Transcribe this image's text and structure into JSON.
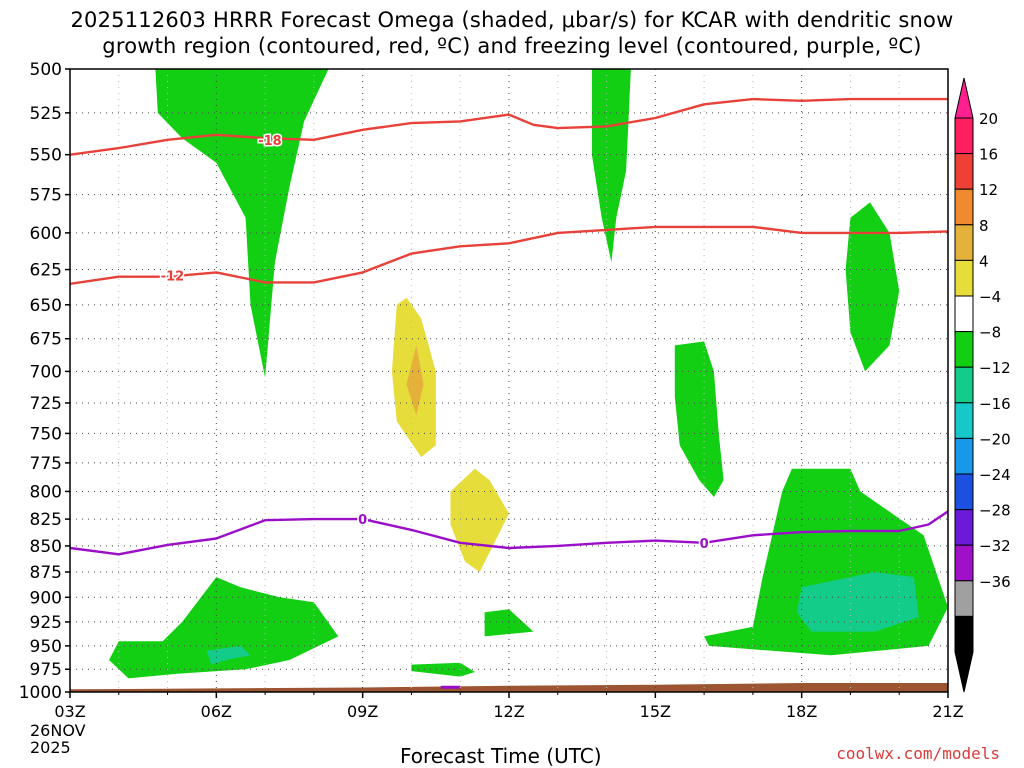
{
  "title_line1": "2025112603 HRRR Forecast Omega (shaded, μbar/s) for KCAR with dendritic snow",
  "title_line2": "growth region (contoured, red, ºC) and freezing level (contoured, purple, ºC)",
  "credit": "coolwx.com/models",
  "chart_data": {
    "type": "heatmap",
    "xlabel": "Forecast Time (UTC)",
    "x_date_label": [
      "26NOV",
      "2025"
    ],
    "x_ticks": [
      "03Z",
      "06Z",
      "09Z",
      "12Z",
      "15Z",
      "18Z",
      "21Z"
    ],
    "x_range_hours": [
      3,
      21
    ],
    "y_ticks": [
      500,
      525,
      550,
      575,
      600,
      625,
      650,
      675,
      700,
      725,
      750,
      775,
      800,
      825,
      850,
      875,
      900,
      925,
      950,
      975,
      1000
    ],
    "y_range_hpa": [
      500,
      1000
    ],
    "y_scale": "log-pressure (inverted)",
    "grid": true,
    "colorbar": {
      "labels": [
        "20",
        "16",
        "12",
        "8",
        "4",
        "−4",
        "−8",
        "−12",
        "−16",
        "−20",
        "−24",
        "−28",
        "−32",
        "−36"
      ],
      "colors": [
        "#ff1f5f",
        "#ee4035",
        "#f08a30",
        "#e4b23a",
        "#e6dc3a",
        "#ffffff",
        "#13cf13",
        "#14cc8a",
        "#17c8c8",
        "#1898e8",
        "#1b50e0",
        "#6a1ad8",
        "#a010c8",
        "#a0a0a0",
        "#000000"
      ],
      "top_arrow_color": "#ff1f8f",
      "bottom_arrow_color": "#000000"
    },
    "contours": [
      {
        "label": "-18",
        "color": "#e8413a",
        "points": [
          [
            3,
            550
          ],
          [
            4,
            546
          ],
          [
            5,
            541
          ],
          [
            6,
            538
          ],
          [
            7,
            540
          ],
          [
            8,
            541
          ],
          [
            9,
            535
          ],
          [
            10,
            531
          ],
          [
            11,
            530
          ],
          [
            12,
            526
          ],
          [
            12.5,
            532
          ],
          [
            13,
            534
          ],
          [
            14,
            533
          ],
          [
            15,
            528
          ],
          [
            16,
            520
          ],
          [
            17,
            517
          ],
          [
            18,
            518
          ],
          [
            19,
            517
          ],
          [
            20,
            517
          ],
          [
            21,
            517
          ]
        ]
      },
      {
        "label": "-12",
        "color": "#e8413a",
        "points": [
          [
            3,
            635
          ],
          [
            4,
            630
          ],
          [
            5,
            630
          ],
          [
            6,
            627
          ],
          [
            7,
            634
          ],
          [
            8,
            634
          ],
          [
            9,
            627
          ],
          [
            10,
            614
          ],
          [
            11,
            609
          ],
          [
            12,
            607
          ],
          [
            13,
            600
          ],
          [
            14,
            598
          ],
          [
            15,
            596
          ],
          [
            16,
            596
          ],
          [
            17,
            596
          ],
          [
            18,
            600
          ],
          [
            19,
            600
          ],
          [
            20,
            600
          ],
          [
            21,
            599
          ]
        ]
      },
      {
        "label": "0",
        "color": "#9b0ec8",
        "points": [
          [
            3,
            852
          ],
          [
            4,
            858
          ],
          [
            5,
            849
          ],
          [
            6,
            843
          ],
          [
            7,
            826
          ],
          [
            8,
            825
          ],
          [
            9,
            825
          ],
          [
            10,
            835
          ],
          [
            11,
            847
          ],
          [
            12,
            852
          ],
          [
            13,
            850
          ],
          [
            14,
            847
          ],
          [
            15,
            845
          ],
          [
            16,
            847
          ],
          [
            17,
            840
          ],
          [
            18,
            837
          ],
          [
            19,
            836
          ],
          [
            20,
            836
          ],
          [
            20.6,
            830
          ],
          [
            21,
            818
          ]
        ]
      }
    ],
    "contour_labels": [
      {
        "label": "-18",
        "x": 7.1,
        "y": 541
      },
      {
        "label": "-12",
        "x": 5.1,
        "y": 629
      },
      {
        "label": "0",
        "x": 9.0,
        "y": 825
      },
      {
        "label": "0",
        "x": 16.0,
        "y": 847
      }
    ],
    "omega_regions": [
      {
        "value_range": "-8 to -4",
        "color": "#13cf13",
        "points": [
          [
            4.75,
            500
          ],
          [
            7.6,
            500
          ],
          [
            8.3,
            500
          ],
          [
            7.8,
            530
          ],
          [
            7.5,
            570
          ],
          [
            7.2,
            620
          ],
          [
            7.0,
            705
          ],
          [
            6.7,
            650
          ],
          [
            6.6,
            590
          ],
          [
            6.0,
            555
          ],
          [
            5.3,
            540
          ],
          [
            4.8,
            525
          ]
        ]
      },
      {
        "value_range": "-8 to -4",
        "color": "#13cf13",
        "points": [
          [
            13.7,
            500
          ],
          [
            14.5,
            500
          ],
          [
            14.4,
            560
          ],
          [
            14.2,
            590
          ],
          [
            14.1,
            620
          ],
          [
            13.9,
            590
          ],
          [
            13.7,
            550
          ]
        ]
      },
      {
        "value_range": "-8 to -4",
        "color": "#13cf13",
        "points": [
          [
            19.4,
            580
          ],
          [
            19.8,
            600
          ],
          [
            20.0,
            640
          ],
          [
            19.8,
            680
          ],
          [
            19.3,
            700
          ],
          [
            19.0,
            670
          ],
          [
            18.9,
            625
          ],
          [
            19.0,
            590
          ]
        ]
      },
      {
        "value_range": "-8 to -4",
        "color": "#13cf13",
        "points": [
          [
            15.4,
            680
          ],
          [
            16.0,
            677
          ],
          [
            16.2,
            700
          ],
          [
            16.3,
            750
          ],
          [
            16.4,
            790
          ],
          [
            16.2,
            805
          ],
          [
            15.9,
            790
          ],
          [
            15.5,
            760
          ],
          [
            15.4,
            720
          ]
        ]
      },
      {
        "value_range": "-8 to -4",
        "color": "#13cf13",
        "points": [
          [
            17.8,
            780
          ],
          [
            19.0,
            780
          ],
          [
            19.2,
            800
          ],
          [
            20.5,
            840
          ],
          [
            21,
            910
          ],
          [
            20.6,
            950
          ],
          [
            18.6,
            960
          ],
          [
            16.1,
            950
          ],
          [
            16.0,
            940
          ],
          [
            17.0,
            930
          ],
          [
            17.2,
            880
          ],
          [
            17.6,
            800
          ]
        ]
      },
      {
        "value_range": "-12 to -8",
        "color": "#14cc8a",
        "points": [
          [
            18.0,
            890
          ],
          [
            19.5,
            875
          ],
          [
            20.3,
            880
          ],
          [
            20.4,
            920
          ],
          [
            19.5,
            935
          ],
          [
            18.2,
            935
          ],
          [
            17.9,
            915
          ]
        ]
      },
      {
        "value_range": "-8 to -4",
        "color": "#13cf13",
        "points": [
          [
            6.0,
            880
          ],
          [
            6.5,
            890
          ],
          [
            7.3,
            900
          ],
          [
            8.0,
            905
          ],
          [
            8.5,
            940
          ],
          [
            7.5,
            965
          ],
          [
            6.6,
            975
          ],
          [
            5.2,
            980
          ],
          [
            4.2,
            985
          ],
          [
            3.8,
            965
          ],
          [
            4.0,
            945
          ],
          [
            4.9,
            945
          ],
          [
            5.3,
            925
          ]
        ]
      },
      {
        "value_range": "-12 to -8",
        "color": "#14cc8a",
        "points": [
          [
            5.8,
            955
          ],
          [
            6.5,
            950
          ],
          [
            6.7,
            960
          ],
          [
            6.2,
            965
          ],
          [
            5.9,
            970
          ]
        ]
      },
      {
        "value_range": "-8 to -4",
        "color": "#13cf13",
        "points": [
          [
            11.5,
            915
          ],
          [
            12.0,
            912
          ],
          [
            12.5,
            935
          ],
          [
            11.5,
            940
          ],
          [
            11.5,
            925
          ]
        ]
      },
      {
        "value_range": "-8 to -4",
        "color": "#13cf13",
        "points": [
          [
            10.0,
            970
          ],
          [
            11.0,
            968
          ],
          [
            11.3,
            978
          ],
          [
            11.0,
            983
          ],
          [
            10.0,
            977
          ]
        ]
      },
      {
        "value_range": "4 to 8",
        "color": "#e6dc3a",
        "points": [
          [
            9.9,
            645
          ],
          [
            10.2,
            660
          ],
          [
            10.5,
            700
          ],
          [
            10.5,
            760
          ],
          [
            10.2,
            770
          ],
          [
            9.7,
            740
          ],
          [
            9.6,
            700
          ],
          [
            9.7,
            650
          ]
        ]
      },
      {
        "value_range": "8 to 12",
        "color": "#e4b23a",
        "points": [
          [
            10.1,
            680
          ],
          [
            10.25,
            710
          ],
          [
            10.1,
            735
          ],
          [
            9.9,
            710
          ]
        ]
      },
      {
        "value_range": "4 to 8",
        "color": "#e6dc3a",
        "points": [
          [
            11.3,
            780
          ],
          [
            11.6,
            790
          ],
          [
            12.0,
            820
          ],
          [
            11.4,
            875
          ],
          [
            11.1,
            865
          ],
          [
            10.8,
            830
          ],
          [
            10.8,
            800
          ]
        ]
      }
    ],
    "terrain": {
      "color": "#9b5530",
      "points": [
        [
          3,
          997
        ],
        [
          6,
          996
        ],
        [
          9,
          995
        ],
        [
          12,
          993
        ],
        [
          15,
          992
        ],
        [
          18,
          990
        ],
        [
          21,
          990
        ]
      ]
    },
    "terrain_mark": {
      "color": "#9b0ec8",
      "x_range": [
        10.6,
        11.0
      ],
      "y": 997
    }
  }
}
